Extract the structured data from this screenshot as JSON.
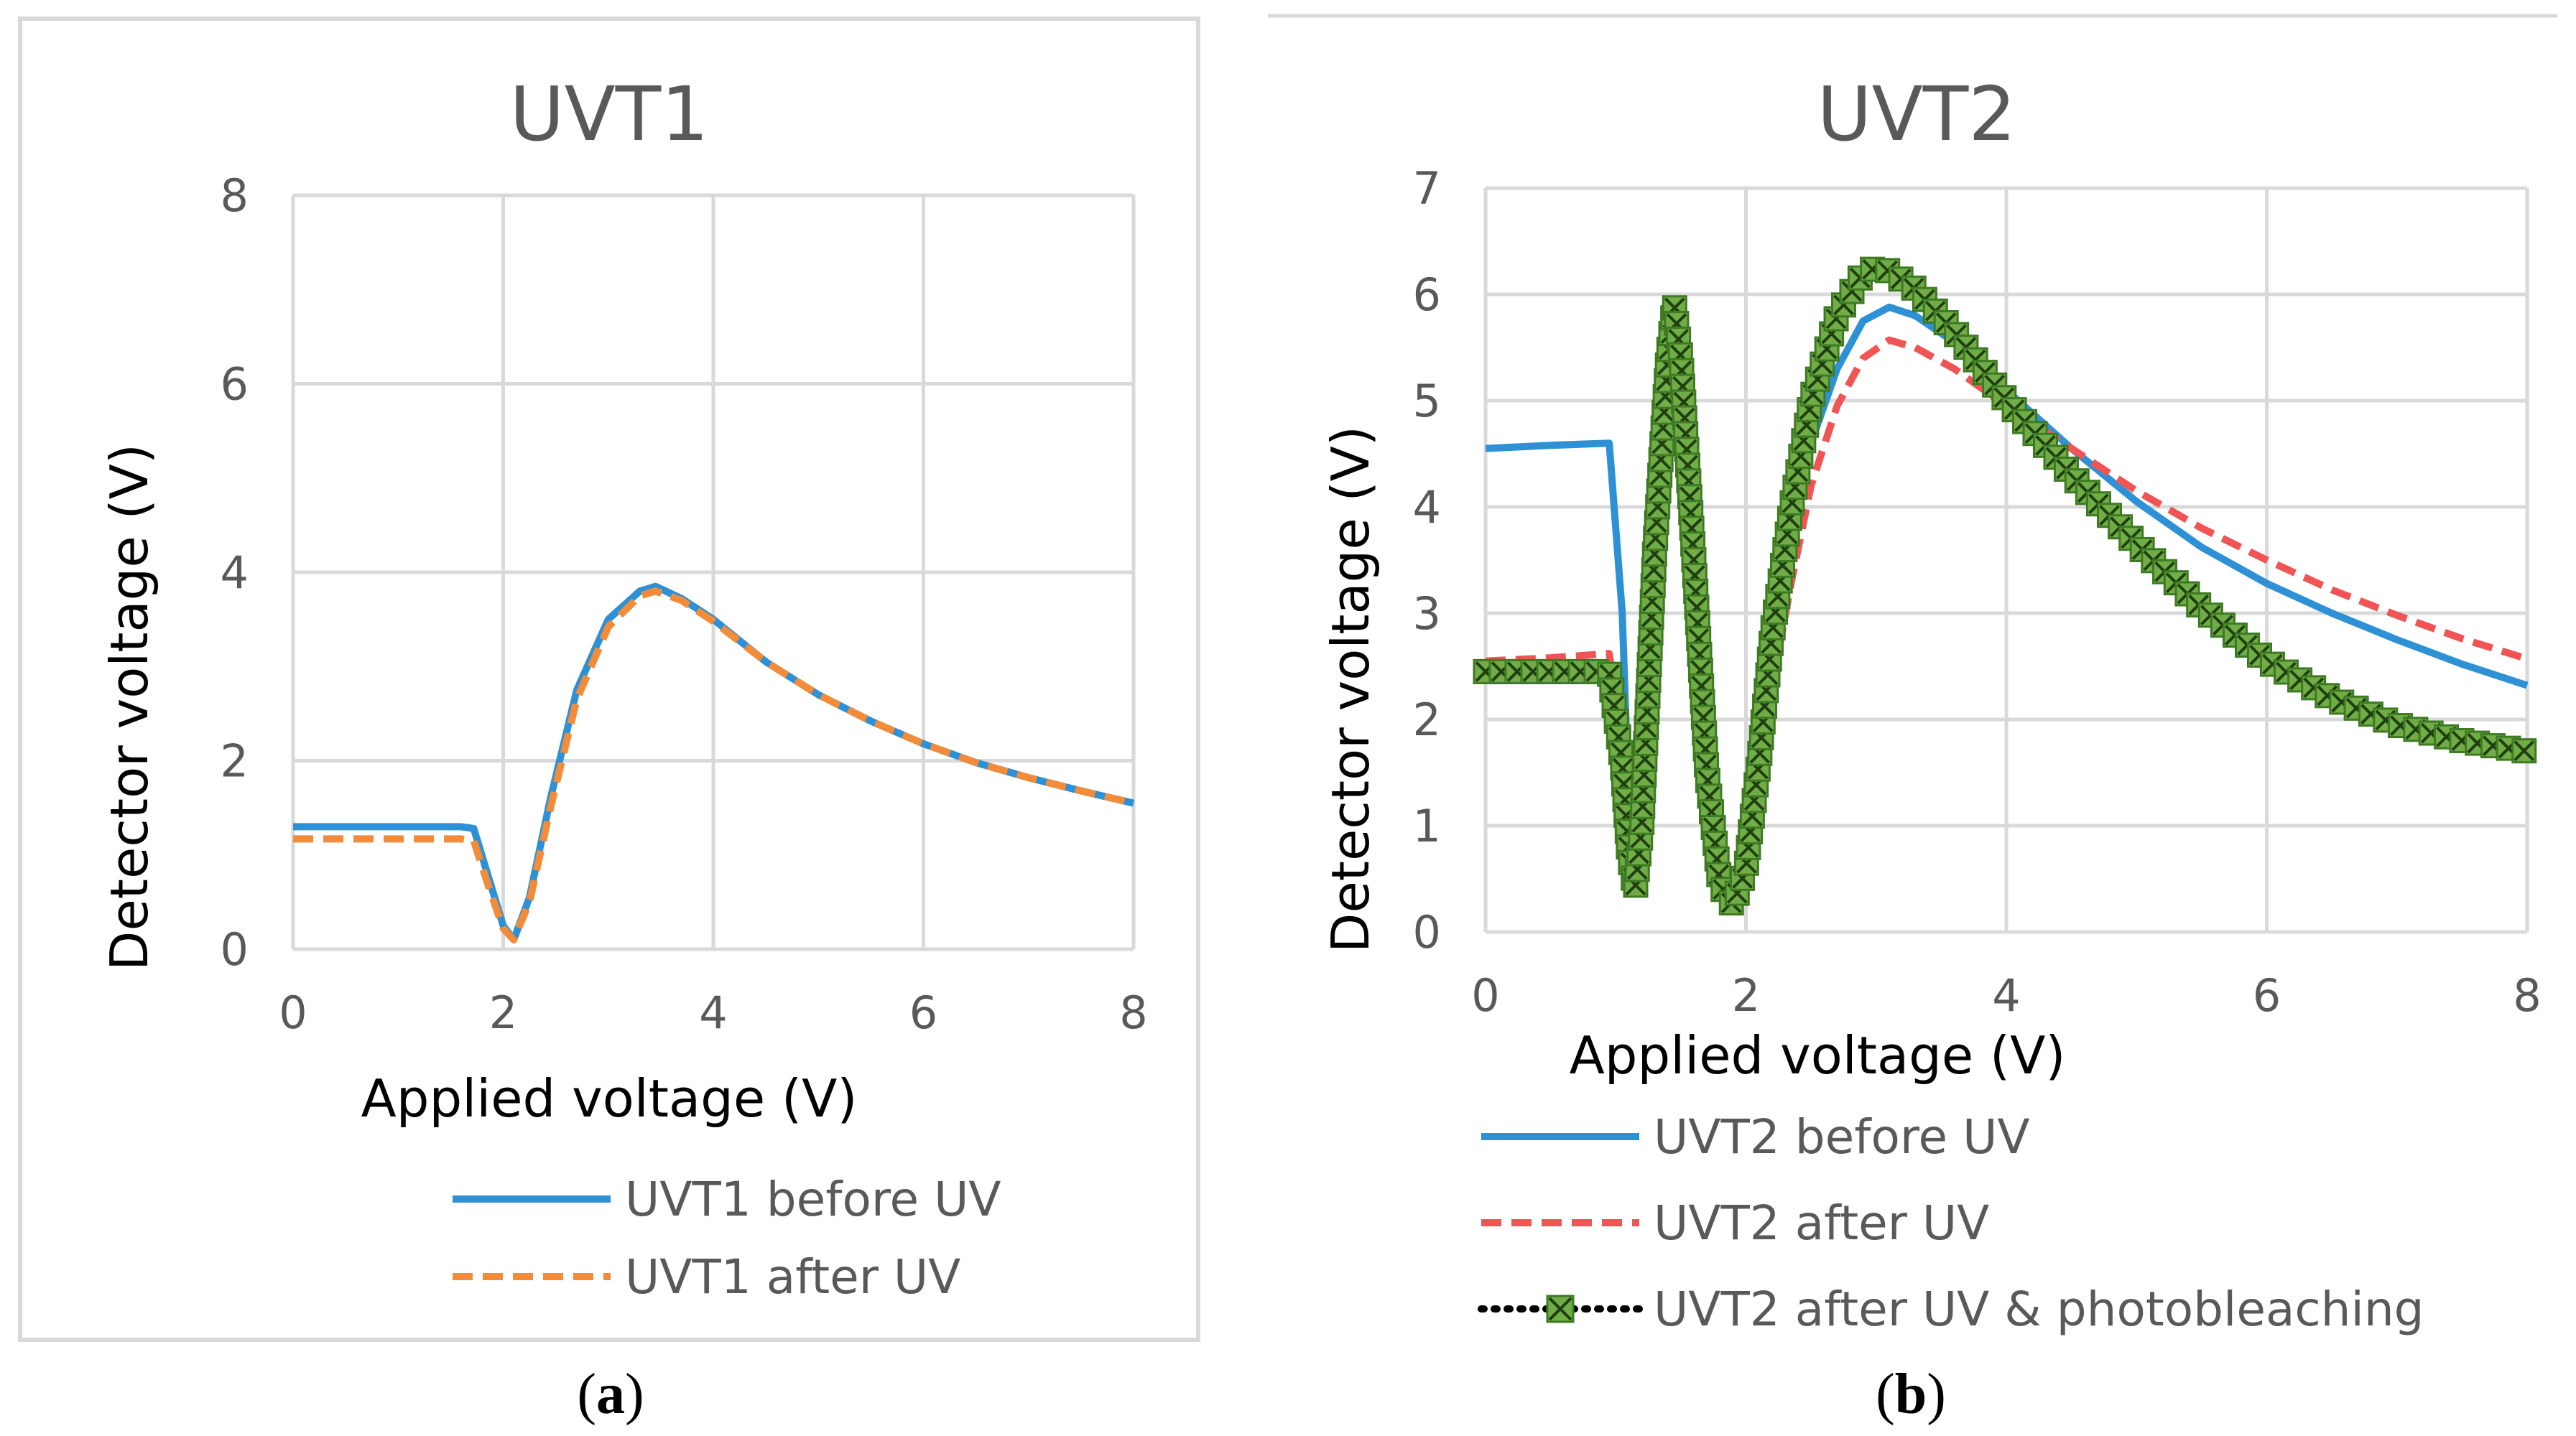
{
  "chart_data": [
    {
      "type": "line",
      "title": "UVT1",
      "xlabel": "Applied voltage (V)",
      "ylabel": "Detector voltage (V)",
      "xlim": [
        0,
        8
      ],
      "ylim": [
        0,
        8
      ],
      "xticks": [
        0,
        2,
        4,
        6,
        8
      ],
      "yticks": [
        0,
        2,
        4,
        6,
        8
      ],
      "grid": true,
      "legend": "bottom",
      "caption_letter": "a",
      "series": [
        {
          "name": "UVT1 before UV",
          "color": "#2e91d5",
          "style": "solid",
          "x": [
            0,
            1.6,
            1.72,
            1.85,
            2.0,
            2.1,
            2.25,
            2.45,
            2.7,
            3.0,
            3.3,
            3.45,
            3.7,
            4.0,
            4.5,
            5.0,
            5.5,
            6.0,
            6.5,
            7.0,
            7.5,
            8.0
          ],
          "y": [
            1.3,
            1.3,
            1.28,
            0.8,
            0.25,
            0.1,
            0.55,
            1.6,
            2.75,
            3.5,
            3.8,
            3.85,
            3.72,
            3.5,
            3.05,
            2.7,
            2.42,
            2.18,
            1.98,
            1.82,
            1.68,
            1.55
          ]
        },
        {
          "name": "UVT1 after UV",
          "color": "#f28c3a",
          "style": "dashed",
          "x": [
            0,
            1.6,
            1.72,
            1.85,
            2.0,
            2.1,
            2.25,
            2.45,
            2.7,
            3.0,
            3.3,
            3.45,
            3.7,
            4.0,
            4.5,
            5.0,
            5.5,
            6.0,
            6.5,
            7.0,
            7.5,
            8.0
          ],
          "y": [
            1.17,
            1.17,
            1.15,
            0.7,
            0.22,
            0.1,
            0.5,
            1.5,
            2.65,
            3.42,
            3.75,
            3.8,
            3.7,
            3.48,
            3.05,
            2.7,
            2.42,
            2.18,
            1.98,
            1.82,
            1.68,
            1.55
          ]
        }
      ]
    },
    {
      "type": "line",
      "title": "UVT2",
      "xlabel": "Applied voltage (V)",
      "ylabel": "Detector voltage (V)",
      "xlim": [
        0,
        8
      ],
      "ylim": [
        0,
        7
      ],
      "xticks": [
        0,
        2,
        4,
        6,
        8
      ],
      "yticks": [
        0,
        1,
        2,
        3,
        4,
        5,
        6,
        7
      ],
      "grid": true,
      "legend": "bottom",
      "caption_letter": "b",
      "series": [
        {
          "name": "UVT2 before UV",
          "color": "#2e91d5",
          "style": "solid",
          "x": [
            0,
            0.5,
            0.95,
            1.05,
            1.1,
            1.15,
            1.2,
            1.3,
            1.4,
            1.45,
            1.5,
            1.6,
            1.7,
            1.8,
            1.9,
            2.0,
            2.1,
            2.2,
            2.35,
            2.5,
            2.7,
            2.9,
            3.1,
            3.3,
            3.6,
            4.0,
            4.5,
            5.0,
            5.5,
            6.0,
            6.5,
            7.0,
            7.5,
            8.0
          ],
          "y": [
            4.55,
            4.58,
            4.6,
            3.0,
            1.2,
            0.6,
            1.2,
            3.5,
            5.1,
            5.6,
            5.2,
            3.5,
            1.7,
            0.6,
            0.35,
            0.7,
            1.6,
            2.6,
            3.7,
            4.6,
            5.3,
            5.75,
            5.88,
            5.8,
            5.55,
            5.1,
            4.55,
            4.05,
            3.62,
            3.28,
            3.0,
            2.75,
            2.52,
            2.32
          ]
        },
        {
          "name": "UVT2 after UV",
          "color": "#f05454",
          "style": "dashed",
          "x": [
            0,
            0.5,
            0.95,
            1.05,
            1.1,
            1.15,
            1.2,
            1.3,
            1.4,
            1.45,
            1.5,
            1.6,
            1.7,
            1.8,
            1.9,
            2.0,
            2.1,
            2.2,
            2.35,
            2.5,
            2.7,
            2.9,
            3.1,
            3.3,
            3.6,
            4.0,
            4.5,
            5.0,
            5.5,
            6.0,
            6.5,
            7.0,
            7.5,
            8.0
          ],
          "y": [
            2.55,
            2.58,
            2.62,
            1.8,
            0.9,
            0.5,
            1.1,
            3.4,
            5.0,
            5.45,
            5.0,
            3.3,
            1.6,
            0.55,
            0.3,
            0.6,
            1.4,
            2.3,
            3.3,
            4.2,
            4.95,
            5.4,
            5.57,
            5.5,
            5.3,
            4.95,
            4.55,
            4.15,
            3.8,
            3.5,
            3.22,
            2.98,
            2.76,
            2.57
          ]
        },
        {
          "name": "UVT2 after UV & photobleaching",
          "color": "#70ad47",
          "line_color": "#000000",
          "style": "dotted-markers",
          "x": [
            0,
            0.5,
            0.95,
            1.05,
            1.1,
            1.15,
            1.2,
            1.3,
            1.4,
            1.45,
            1.5,
            1.6,
            1.7,
            1.8,
            1.9,
            2.0,
            2.1,
            2.2,
            2.35,
            2.5,
            2.7,
            2.9,
            3.0,
            3.1,
            3.3,
            3.6,
            4.0,
            4.5,
            5.0,
            5.5,
            6.0,
            6.5,
            7.0,
            7.5,
            8.0
          ],
          "y": [
            2.45,
            2.45,
            2.45,
            1.6,
            0.75,
            0.4,
            1.0,
            3.6,
            5.4,
            5.9,
            5.4,
            3.5,
            1.5,
            0.45,
            0.25,
            0.6,
            1.6,
            2.8,
            4.0,
            5.0,
            5.8,
            6.2,
            6.25,
            6.22,
            6.05,
            5.65,
            5.0,
            4.3,
            3.65,
            3.05,
            2.55,
            2.2,
            1.95,
            1.8,
            1.7
          ]
        }
      ]
    }
  ]
}
